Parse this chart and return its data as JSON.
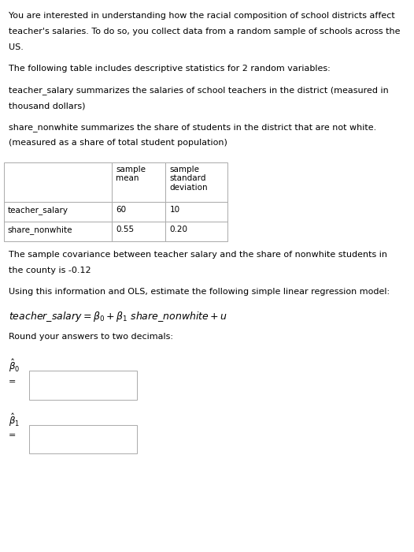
{
  "bg_color": "#ffffff",
  "text_color": "#000000",
  "font_size_body": 8.0,
  "font_size_eq": 9.0,
  "para1_lines": [
    "You are interested in understanding how the racial composition of school districts affect",
    "teacher's salaries. To do so, you collect data from a random sample of schools across the",
    "US."
  ],
  "para2": "The following table includes descriptive statistics for 2 random variables:",
  "para3_lines": [
    "teacher_salary summarizes the salaries of school teachers in the district (measured in",
    "thousand dollars)"
  ],
  "para4_lines": [
    "share_nonwhite summarizes the share of students in the district that are not white.",
    "(measured as a share of total student population)"
  ],
  "table_col0_labels": [
    "",
    "teacher_salary",
    "share_nonwhite"
  ],
  "table_col1_labels": [
    "sample\nmean",
    "60",
    "0.55"
  ],
  "table_col2_labels": [
    "sample\nstandard\ndeviation",
    "10",
    "0.20"
  ],
  "para5_lines": [
    "The sample covariance between teacher salary and the share of nonwhite students in",
    "the county is -0.12"
  ],
  "para6": "Using this information and OLS, estimate the following simple linear regression model:",
  "para7": "Round your answers to two decimals:",
  "table_border_color": "#aaaaaa",
  "input_box_border": "#aaaaaa"
}
